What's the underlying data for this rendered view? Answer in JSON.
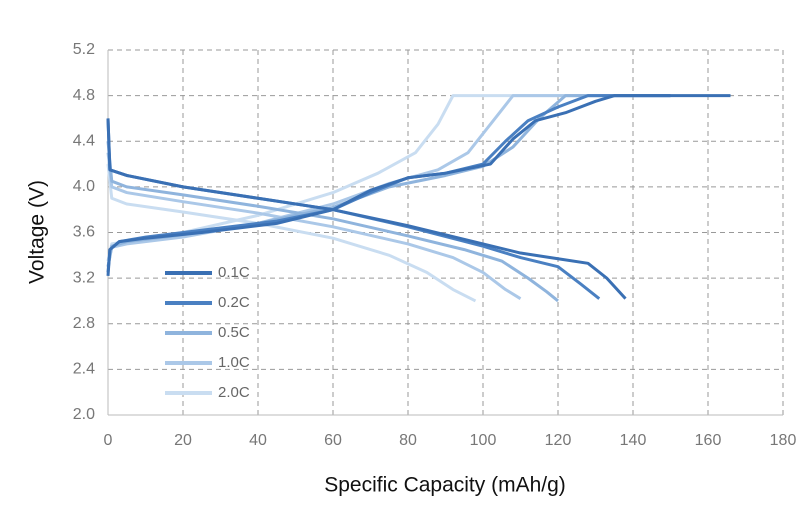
{
  "chart_data": {
    "type": "line",
    "x_label": "Specific Capacity (mAh/g)",
    "y_label": "Voltage (V)",
    "xlim": [
      0,
      180
    ],
    "xticks": [
      0,
      20,
      40,
      60,
      80,
      100,
      120,
      140,
      160,
      180
    ],
    "ylim": [
      2,
      5.2
    ],
    "yticks": [
      {
        "value": 2,
        "label": "2.0"
      },
      2.4,
      2.8,
      {
        "value": 3.2,
        "label": "3.2"
      },
      3.6,
      {
        "value": 4,
        "label": "4.0"
      },
      4.4,
      4.8,
      5.2
    ],
    "grid": true,
    "legend": "left",
    "series": [
      {
        "name": "0.1C",
        "color": "#3a70b4",
        "curves": [
          {
            "x": [
              0,
              0.5,
              3,
              10,
              25,
              45,
              60,
              70,
              80,
              90,
              102,
              108,
              114,
              122,
              130,
              135,
              166
            ],
            "values": [
              3.22,
              3.45,
              3.52,
              3.55,
              3.6,
              3.68,
              3.8,
              3.97,
              4.08,
              4.12,
              4.2,
              4.42,
              4.58,
              4.65,
              4.75,
              4.8,
              4.8
            ]
          },
          {
            "x": [
              0,
              0.5,
              5,
              20,
              40,
              60,
              80,
              100,
              110,
              120,
              128,
              133,
              138
            ],
            "values": [
              4.6,
              4.15,
              4.1,
              4.0,
              3.9,
              3.8,
              3.66,
              3.5,
              3.42,
              3.37,
              3.33,
              3.2,
              3.02
            ]
          }
        ]
      },
      {
        "name": "0.2C",
        "color": "#4a80c2",
        "curves": [
          {
            "x": [
              0,
              0.5,
              3,
              10,
              25,
              45,
              60,
              70,
              80,
              90,
              100,
              106,
              112,
              120,
              128,
              150
            ],
            "values": [
              3.25,
              3.45,
              3.52,
              3.56,
              3.62,
              3.7,
              3.8,
              3.95,
              4.08,
              4.12,
              4.2,
              4.4,
              4.58,
              4.7,
              4.8,
              4.8
            ]
          },
          {
            "x": [
              0,
              0.5,
              5,
              20,
              40,
              60,
              80,
              100,
              110,
              120,
              126,
              131
            ],
            "values": [
              4.6,
              4.15,
              4.1,
              4.0,
              3.9,
              3.8,
              3.65,
              3.48,
              3.38,
              3.3,
              3.15,
              3.02
            ]
          }
        ]
      },
      {
        "name": "0.5C",
        "color": "#8fb4dd",
        "curves": [
          {
            "x": [
              0,
              1,
              5,
              20,
              40,
              60,
              75,
              90,
              100,
              108,
              115,
              122,
              150
            ],
            "values": [
              3.3,
              3.48,
              3.52,
              3.58,
              3.68,
              3.82,
              4.0,
              4.1,
              4.18,
              4.35,
              4.6,
              4.8,
              4.8
            ]
          },
          {
            "x": [
              0,
              1,
              5,
              20,
              40,
              60,
              80,
              95,
              105,
              112,
              117,
              120
            ],
            "values": [
              4.4,
              4.05,
              4.0,
              3.93,
              3.83,
              3.72,
              3.57,
              3.45,
              3.35,
              3.2,
              3.08,
              3.0
            ]
          }
        ]
      },
      {
        "name": "1.0C",
        "color": "#abc8e8",
        "curves": [
          {
            "x": [
              0,
              1,
              5,
              20,
              40,
              60,
              75,
              88,
              96,
              102,
              108,
              150
            ],
            "values": [
              3.3,
              3.47,
              3.5,
              3.56,
              3.68,
              3.85,
              4.03,
              4.15,
              4.3,
              4.55,
              4.8,
              4.8
            ]
          },
          {
            "x": [
              0,
              1,
              5,
              20,
              40,
              60,
              80,
              92,
              100,
              106,
              110
            ],
            "values": [
              4.3,
              4.0,
              3.95,
              3.87,
              3.77,
              3.65,
              3.5,
              3.38,
              3.25,
              3.1,
              3.02
            ]
          }
        ]
      },
      {
        "name": "2.0C",
        "color": "#c9ddf1",
        "curves": [
          {
            "x": [
              0,
              1,
              5,
              20,
              40,
              60,
              72,
              82,
              88,
              92,
              150
            ],
            "values": [
              3.35,
              3.5,
              3.52,
              3.6,
              3.75,
              3.95,
              4.12,
              4.3,
              4.55,
              4.8,
              4.8
            ]
          },
          {
            "x": [
              0,
              1,
              5,
              20,
              40,
              60,
              75,
              85,
              92,
              98
            ],
            "values": [
              4.2,
              3.9,
              3.85,
              3.78,
              3.68,
              3.55,
              3.4,
              3.25,
              3.1,
              3.0
            ]
          }
        ]
      }
    ]
  }
}
